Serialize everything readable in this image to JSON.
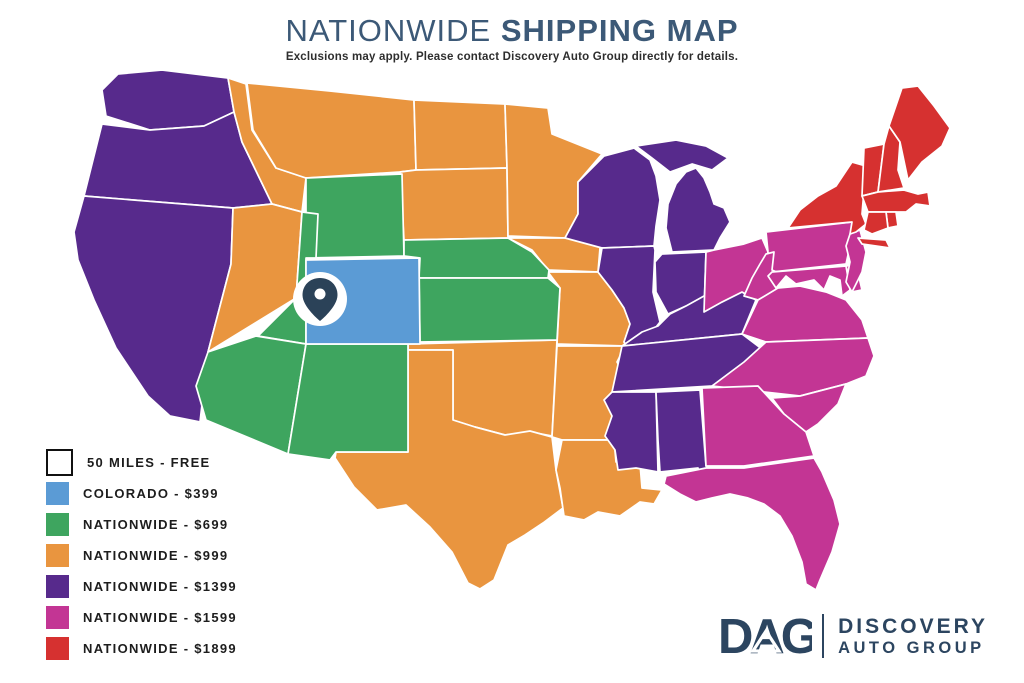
{
  "header": {
    "title_light": "NATIONWIDE",
    "title_bold": "SHIPPING MAP",
    "subtitle": "Exclusions may apply. Please contact Discovery Auto Group directly for details."
  },
  "legend": {
    "items": [
      {
        "key": "free",
        "label": "50 MILES - FREE",
        "color": "#ffffff",
        "border": "#111111"
      },
      {
        "key": "t399",
        "label": "COLORADO - $399",
        "color": "#5b9bd5",
        "border": ""
      },
      {
        "key": "t699",
        "label": "NATIONWIDE - $699",
        "color": "#3ea55f",
        "border": ""
      },
      {
        "key": "t999",
        "label": "NATIONWIDE - $999",
        "color": "#e9953f",
        "border": ""
      },
      {
        "key": "t1399",
        "label": "NATIONWIDE - $1399",
        "color": "#572a8c",
        "border": ""
      },
      {
        "key": "t1599",
        "label": "NATIONWIDE - $1599",
        "color": "#c33594",
        "border": ""
      },
      {
        "key": "t1899",
        "label": "NATIONWIDE - $1899",
        "color": "#d63130",
        "border": ""
      }
    ]
  },
  "map": {
    "pin_color": "#2b4258",
    "states": [
      {
        "id": "WA",
        "name": "Washington",
        "tier": "t1399"
      },
      {
        "id": "OR",
        "name": "Oregon",
        "tier": "t1399"
      },
      {
        "id": "CA",
        "name": "California",
        "tier": "t1399"
      },
      {
        "id": "ID",
        "name": "Idaho",
        "tier": "t999"
      },
      {
        "id": "NV",
        "name": "Nevada",
        "tier": "t999"
      },
      {
        "id": "MT",
        "name": "Montana",
        "tier": "t999"
      },
      {
        "id": "ND",
        "name": "North Dakota",
        "tier": "t999"
      },
      {
        "id": "SD",
        "name": "South Dakota",
        "tier": "t999"
      },
      {
        "id": "MN",
        "name": "Minnesota",
        "tier": "t999"
      },
      {
        "id": "IA",
        "name": "Iowa",
        "tier": "t999"
      },
      {
        "id": "MO",
        "name": "Missouri",
        "tier": "t999"
      },
      {
        "id": "OK",
        "name": "Oklahoma",
        "tier": "t999"
      },
      {
        "id": "TX",
        "name": "Texas",
        "tier": "t999"
      },
      {
        "id": "AR",
        "name": "Arkansas",
        "tier": "t999"
      },
      {
        "id": "LA",
        "name": "Louisiana",
        "tier": "t999"
      },
      {
        "id": "WY",
        "name": "Wyoming",
        "tier": "t699"
      },
      {
        "id": "UT",
        "name": "Utah",
        "tier": "t699"
      },
      {
        "id": "AZ",
        "name": "Arizona",
        "tier": "t699"
      },
      {
        "id": "NM",
        "name": "New Mexico",
        "tier": "t699"
      },
      {
        "id": "NE",
        "name": "Nebraska",
        "tier": "t699"
      },
      {
        "id": "KS",
        "name": "Kansas",
        "tier": "t699"
      },
      {
        "id": "CO",
        "name": "Colorado",
        "tier": "t399"
      },
      {
        "id": "WI",
        "name": "Wisconsin",
        "tier": "t1399"
      },
      {
        "id": "IL",
        "name": "Illinois",
        "tier": "t1399"
      },
      {
        "id": "MI_UP",
        "name": "Michigan Upper Peninsula",
        "tier": "t1399"
      },
      {
        "id": "MI",
        "name": "Michigan",
        "tier": "t1399"
      },
      {
        "id": "IN",
        "name": "Indiana",
        "tier": "t1399"
      },
      {
        "id": "KY",
        "name": "Kentucky",
        "tier": "t1399"
      },
      {
        "id": "TN",
        "name": "Tennessee",
        "tier": "t1399"
      },
      {
        "id": "MS",
        "name": "Mississippi",
        "tier": "t1399"
      },
      {
        "id": "AL",
        "name": "Alabama",
        "tier": "t1399"
      },
      {
        "id": "OH",
        "name": "Ohio",
        "tier": "t1599"
      },
      {
        "id": "PA",
        "name": "Pennsylvania",
        "tier": "t1599"
      },
      {
        "id": "WV",
        "name": "West Virginia",
        "tier": "t1599"
      },
      {
        "id": "VA",
        "name": "Virginia",
        "tier": "t1599"
      },
      {
        "id": "MD",
        "name": "Maryland",
        "tier": "t1599"
      },
      {
        "id": "DE",
        "name": "Delaware",
        "tier": "t1599"
      },
      {
        "id": "NJ",
        "name": "New Jersey",
        "tier": "t1599"
      },
      {
        "id": "NC",
        "name": "North Carolina",
        "tier": "t1599"
      },
      {
        "id": "SC",
        "name": "South Carolina",
        "tier": "t1599"
      },
      {
        "id": "GA",
        "name": "Georgia",
        "tier": "t1599"
      },
      {
        "id": "FL",
        "name": "Florida",
        "tier": "t1599"
      },
      {
        "id": "NY",
        "name": "New York",
        "tier": "t1899"
      },
      {
        "id": "LI",
        "name": "Long Island",
        "tier": "t1899"
      },
      {
        "id": "VT",
        "name": "Vermont",
        "tier": "t1899"
      },
      {
        "id": "NH",
        "name": "New Hampshire",
        "tier": "t1899"
      },
      {
        "id": "ME",
        "name": "Maine",
        "tier": "t1899"
      },
      {
        "id": "MA",
        "name": "Massachusetts",
        "tier": "t1899"
      },
      {
        "id": "RI",
        "name": "Rhode Island",
        "tier": "t1899"
      },
      {
        "id": "CT",
        "name": "Connecticut",
        "tier": "t1899"
      }
    ]
  },
  "logo": {
    "monogram": "DAG",
    "line1": "DISCOVERY",
    "line2": "AUTO GROUP",
    "color": "#2c4560"
  }
}
